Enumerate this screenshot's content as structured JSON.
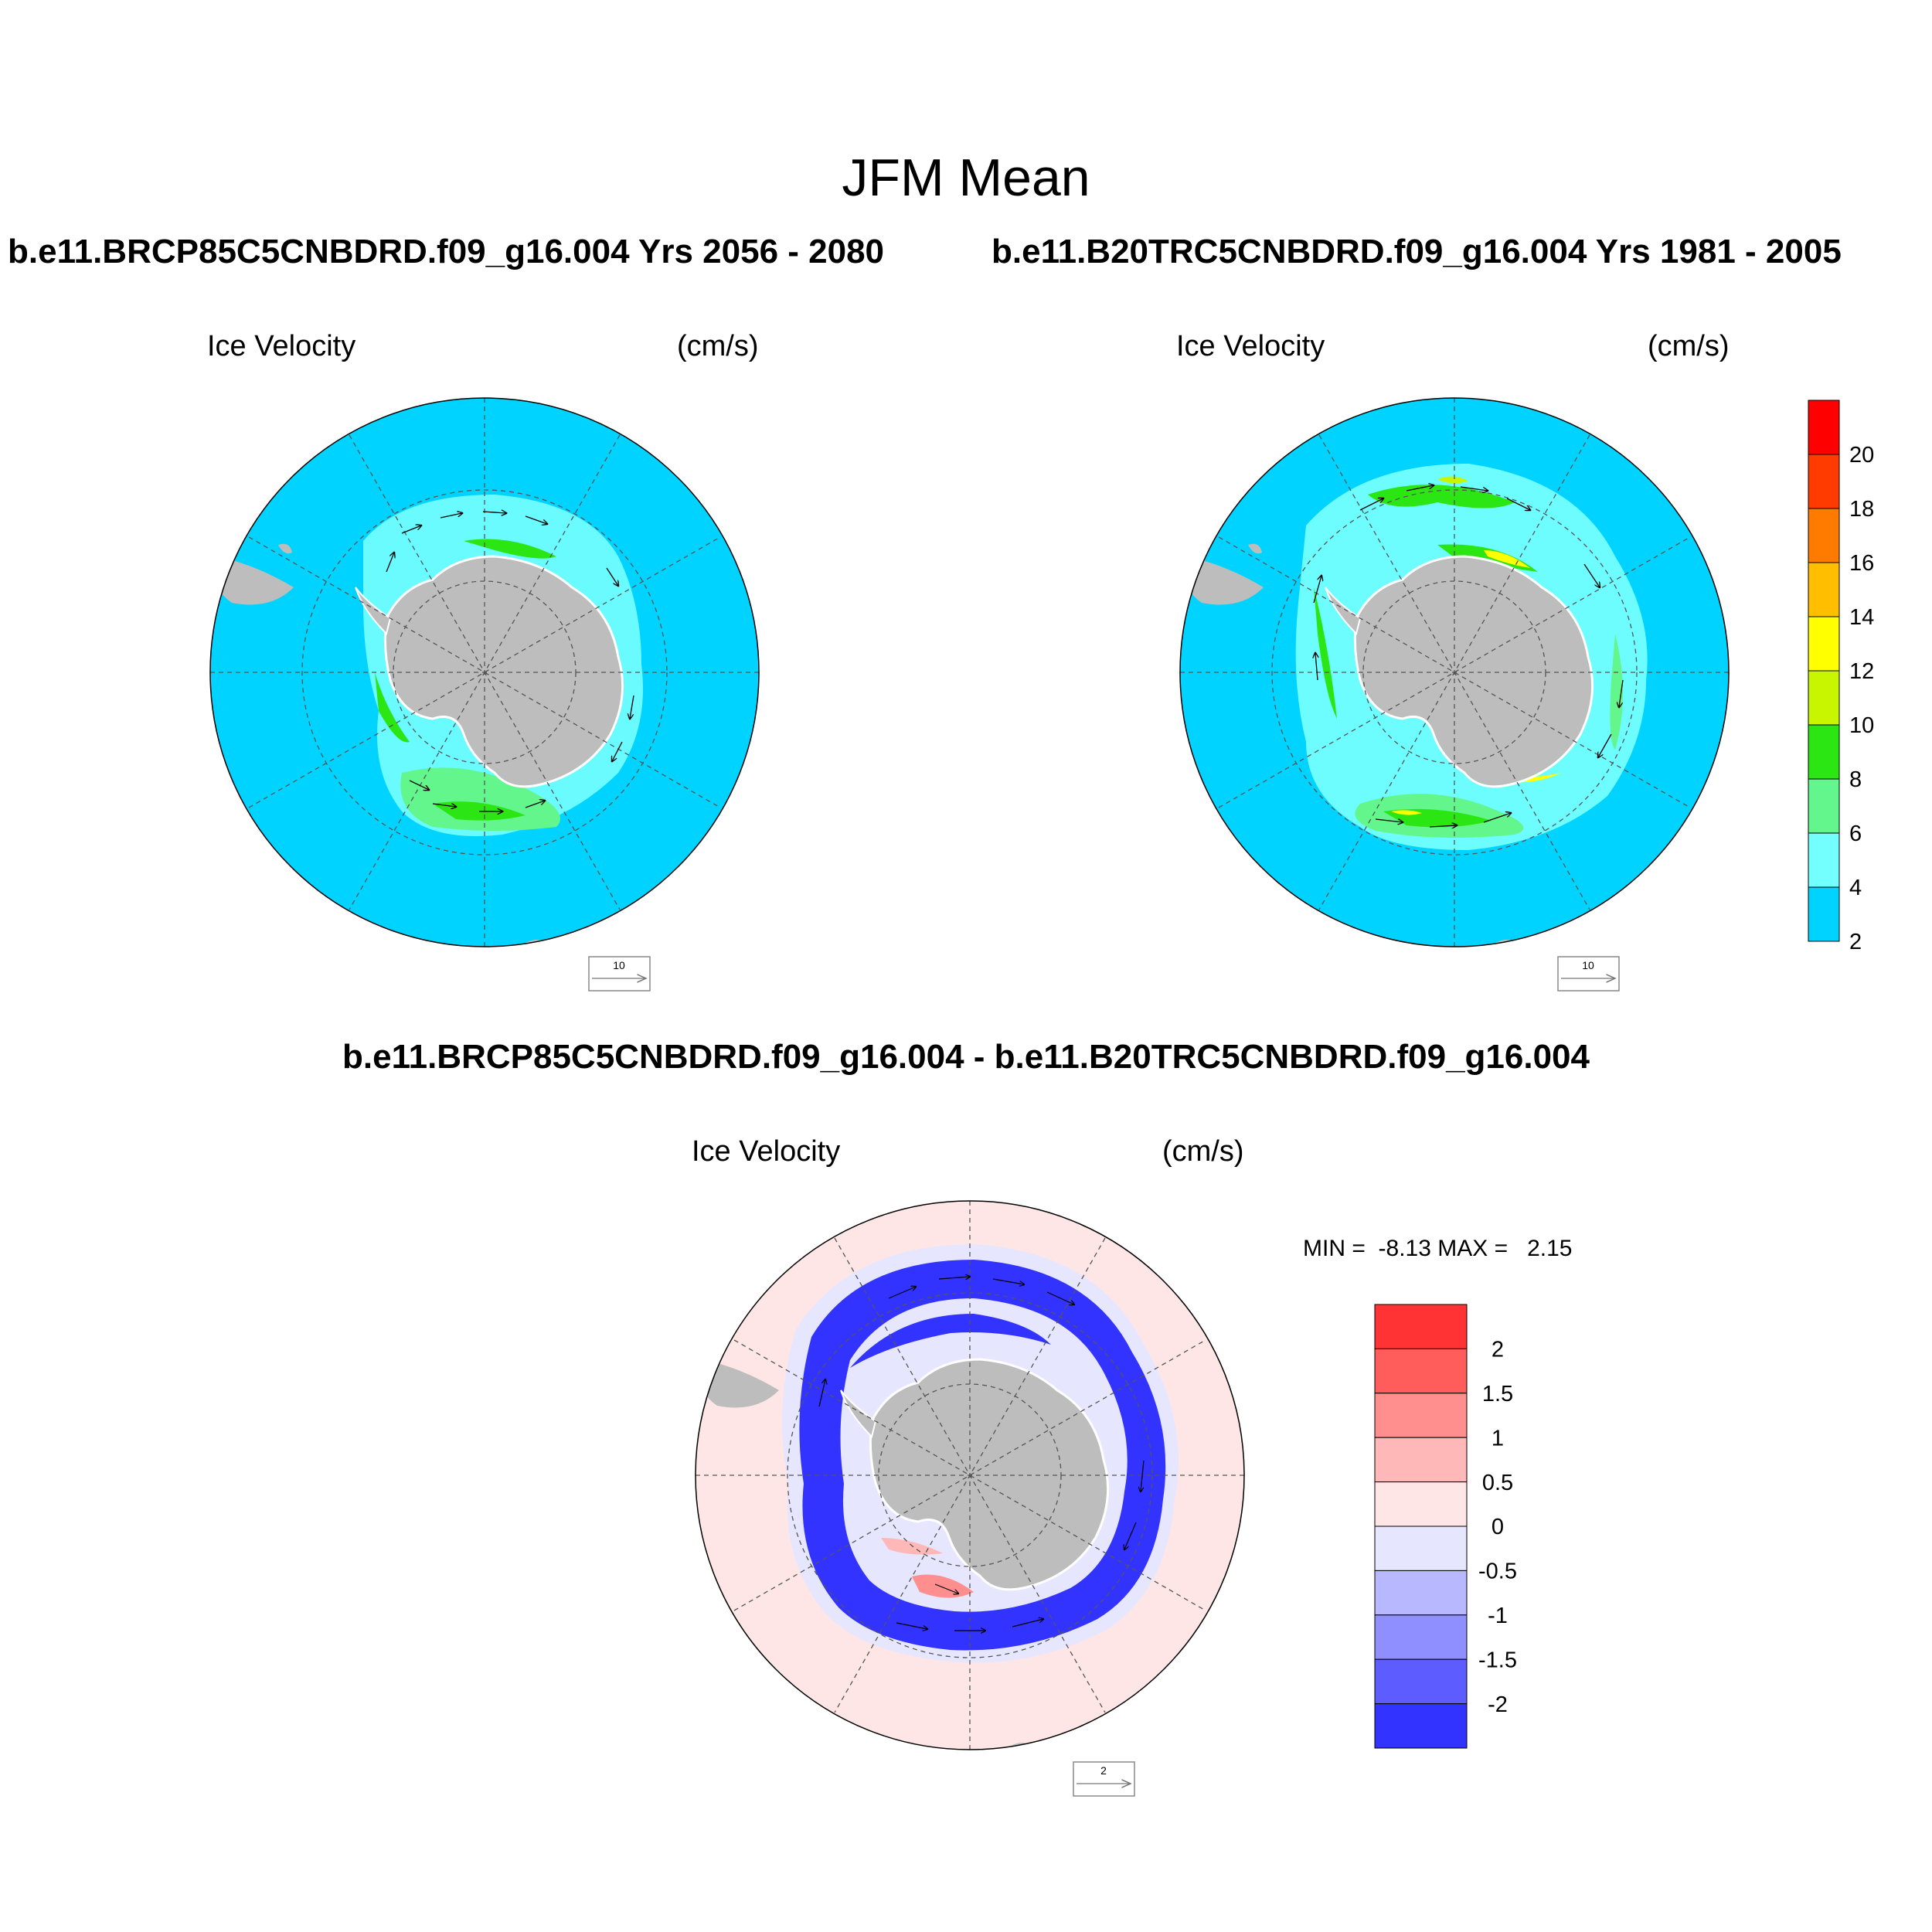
{
  "title": "JFM Mean",
  "panel_top_left": {
    "case_title": "b.e11.BRCP85C5CNBDRD.f09_g16.004  Yrs 2056 - 2080",
    "left_label": "Ice Velocity",
    "right_label": "(cm/s)",
    "ref_vector_label": "10"
  },
  "panel_top_right": {
    "case_title": "b.e11.B20TRC5CNBDRD.f09_g16.004  Yrs 1981 - 2005",
    "left_label": "Ice Velocity",
    "right_label": "(cm/s)",
    "ref_vector_label": "10"
  },
  "panel_diff": {
    "case_title": "b.e11.BRCP85C5CNBDRD.f09_g16.004 - b.e11.B20TRC5CNBDRD.f09_g16.004",
    "left_label": "Ice Velocity",
    "right_label": "(cm/s)",
    "ref_vector_label": "2",
    "min_max": "MIN =  -8.13 MAX =   2.15"
  },
  "colorbar_speed": {
    "labels": [
      "20",
      "18",
      "16",
      "14",
      "12",
      "10",
      "8",
      "6",
      "4",
      "2"
    ],
    "colors": [
      "#ff0000",
      "#ff3b00",
      "#ff7b00",
      "#ffbf00",
      "#ffff00",
      "#c8f500",
      "#2ce614",
      "#63f68c",
      "#74ffff",
      "#00d3ff"
    ]
  },
  "colorbar_diff": {
    "labels": [
      "2",
      "1.5",
      "1",
      "0.5",
      "0",
      "-0.5",
      "-1",
      "-1.5",
      "-2"
    ],
    "colors": [
      "#ff3333",
      "#ff5c5c",
      "#ff8f8f",
      "#ffb8b8",
      "#ffe6e6",
      "#e6e6ff",
      "#b8b8ff",
      "#8f8fff",
      "#5c5cff",
      "#3333ff"
    ]
  },
  "colors": {
    "ocean_speed": "#00d3ff",
    "ocean_diff": "#ffe6e6",
    "land": "#bdbdbd"
  }
}
